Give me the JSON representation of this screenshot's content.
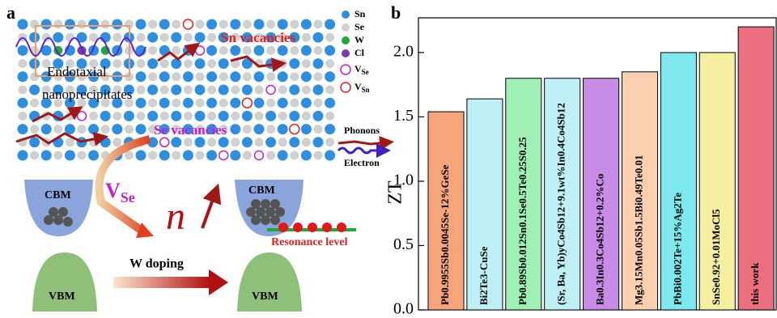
{
  "schematic": {
    "panel_label": "a",
    "legend": [
      {
        "label": "Sn",
        "color": "#2e8fe0"
      },
      {
        "label": "Se",
        "color": "#d0d0d0"
      },
      {
        "label": "W",
        "color": "#1faa3a"
      },
      {
        "label": "Cl",
        "color": "#7a3ab0"
      }
    ],
    "vacancy_legend": [
      {
        "main": "V",
        "sub": "Se",
        "color": "#c020d0"
      },
      {
        "main": "V",
        "sub": "Sn",
        "color": "#e02020"
      }
    ],
    "sn_vacancies": "Sn vacancies",
    "se_vacancies": "Se vacancies",
    "nanoprecipitates": [
      "Endotaxial",
      "nanoprecipitates"
    ],
    "phonons": "Phonons",
    "electron": "Electron",
    "cbm": "CBM",
    "vbm": "VBM",
    "v_se": {
      "main": "V",
      "sub": "Se"
    },
    "carrier": "n",
    "w_doping": "W doping",
    "resonance": "Resonance level"
  },
  "chart_data": {
    "type": "bar",
    "panel_label": "b",
    "y_label": "ZT",
    "categories": [
      "Pb0.9955Sb0.0045Se-12%GeSe",
      "Bi2Te3-CuSe",
      "Pb0.89Sb0.012Sn0.1Se0.5Te0.25S0.25",
      "(Sr, Ba, Yb)yCo4Sb12+9.1wt%In0.4Co4Sb12",
      "Ba0.3In0.3Co4Sb12+0.2%Co",
      "Mg3.15Mn0.05Sb1.5Bi0.49Te0.01",
      "PbBi0.002Te+15%Ag2Te",
      "SnSe0.92+0.01MoCl5",
      "this work"
    ],
    "values": [
      1.54,
      1.64,
      1.8,
      1.8,
      1.8,
      1.85,
      2.0,
      2.0,
      2.2
    ],
    "colors": [
      "#f7a57a",
      "#bff0f5",
      "#9ef0b5",
      "#bff0f5",
      "#c68ce6",
      "#fbd0b0",
      "#7ee8ef",
      "#f5f0a0",
      "#ec6f80"
    ],
    "ylim": [
      0,
      2.27
    ],
    "yticks": [
      {
        "value": 0,
        "label": "0.0"
      },
      0.5,
      {
        "value": 1,
        "label": "1.0"
      },
      1.5,
      {
        "value": 2,
        "label": "2.0"
      }
    ]
  }
}
